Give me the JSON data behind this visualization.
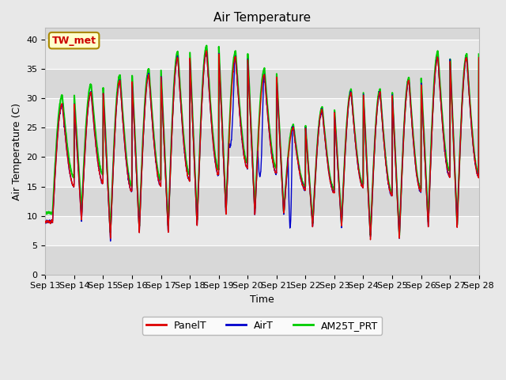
{
  "title": "Air Temperature",
  "xlabel": "Time",
  "ylabel": "Air Temperature (C)",
  "ylim": [
    0,
    42
  ],
  "yticks": [
    0,
    5,
    10,
    15,
    20,
    25,
    30,
    35,
    40
  ],
  "x_tick_labels": [
    "Sep 13",
    "Sep 14",
    "Sep 15",
    "Sep 16",
    "Sep 17",
    "Sep 18",
    "Sep 19",
    "Sep 20",
    "Sep 21",
    "Sep 22",
    "Sep 23",
    "Sep 24",
    "Sep 25",
    "Sep 26",
    "Sep 27",
    "Sep 28"
  ],
  "annotation_text": "TW_met",
  "annotation_color": "#cc0000",
  "annotation_bg": "#ffffcc",
  "annotation_border": "#aa8800",
  "line_colors": {
    "PanelT": "#dd0000",
    "AirT": "#0000cc",
    "AM25T_PRT": "#00cc00"
  },
  "line_widths": {
    "PanelT": 1.0,
    "AirT": 1.0,
    "AM25T_PRT": 1.5
  },
  "fig_bg": "#e8e8e8",
  "band_colors": [
    "#d8d8d8",
    "#e8e8e8"
  ],
  "grid_color": "#ffffff",
  "title_fontsize": 11,
  "label_fontsize": 9,
  "tick_fontsize": 8,
  "legend_fontsize": 9,
  "day_maxs": [
    29,
    31,
    33,
    34,
    37,
    38,
    37,
    34,
    25,
    28,
    31,
    31,
    33,
    37,
    37
  ],
  "day_mins": [
    9,
    9,
    6,
    7,
    7,
    8,
    10,
    10,
    10,
    8,
    8,
    6,
    6,
    8,
    8
  ],
  "am25_extra": [
    1.5,
    1.5,
    1.0,
    1.0,
    1.0,
    1.0,
    1.0,
    1.0,
    0.5,
    0.5,
    0.5,
    0.5,
    0.5,
    1.0,
    0.5
  ]
}
